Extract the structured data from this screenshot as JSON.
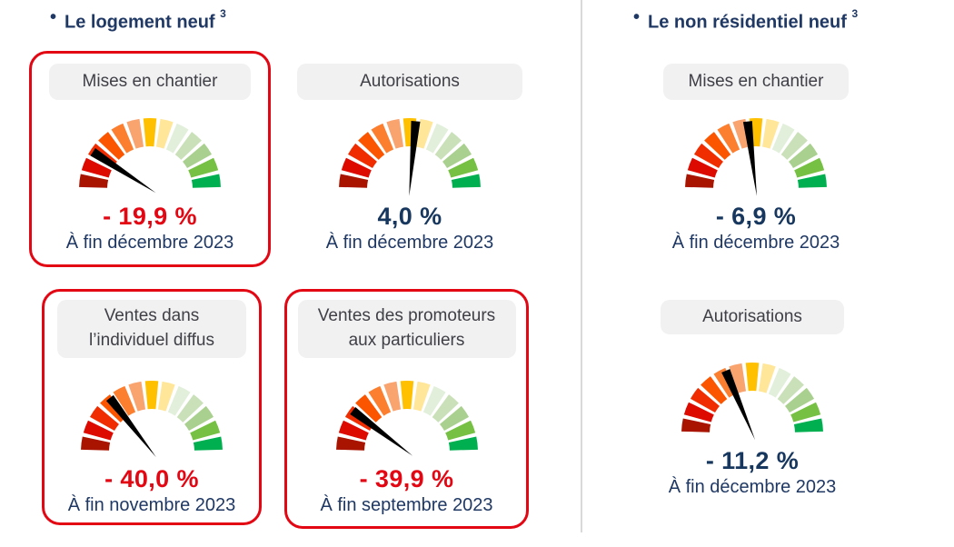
{
  "colors": {
    "accent_red": "#E30613",
    "navy": "#1F3864",
    "value_navy": "#17375E",
    "chip_bg": "#F1F1F2",
    "chip_text": "#3F3F46",
    "divider": "#D9D9D9",
    "needle": "#000000"
  },
  "header": {
    "bullet": "•",
    "left_title": "Le logement neuf",
    "left_footnote": "3",
    "right_title": "Le non résidentiel neuf",
    "right_footnote": "3"
  },
  "gauge_style": {
    "start_angle_deg": 180,
    "end_angle_deg": 0,
    "outer_radius": 78,
    "inner_radius": 47,
    "gap_half_deg": 1.6,
    "segment_colors": [
      "#A81400",
      "#DD0A00",
      "#F02D00",
      "#FB5500",
      "#FC7E2F",
      "#F9A36F",
      "#FFC000",
      "#FFE699",
      "#E2EFDA",
      "#C9E0B8",
      "#A9D08E",
      "#76C043",
      "#00B050"
    ]
  },
  "chart_data": [
    {
      "type": "gauge",
      "section": "Le logement neuf",
      "label": "Mises en chantier",
      "value": -19.9,
      "value_display": "- 19,9 %",
      "period": "À fin décembre 2023",
      "value_color": "#E30613",
      "highlighted": true,
      "needle_angle_deg": 147
    },
    {
      "type": "gauge",
      "section": "Le logement neuf",
      "label": "Autorisations",
      "value": 4.0,
      "value_display": "4,0 %",
      "period": "À fin décembre 2023",
      "value_color": "#17375E",
      "highlighted": false,
      "needle_angle_deg": 85
    },
    {
      "type": "gauge",
      "section": "Le logement neuf",
      "label": "Ventes dans\nl’individuel diffus",
      "value": -40.0,
      "value_display": "- 40,0 %",
      "period": "À fin novembre 2023",
      "value_color": "#E30613",
      "highlighted": true,
      "needle_angle_deg": 128
    },
    {
      "type": "gauge",
      "section": "Le logement neuf",
      "label": "Ventes des promoteurs\naux particuliers",
      "value": -39.9,
      "value_display": "- 39,9 %",
      "period": "À fin septembre 2023",
      "value_color": "#E30613",
      "highlighted": true,
      "needle_angle_deg": 143
    },
    {
      "type": "gauge",
      "section": "Le non résidentiel neuf",
      "label": "Mises en chantier",
      "value": -6.9,
      "value_display": "- 6,9 %",
      "period": "À fin décembre 2023",
      "value_color": "#17375E",
      "highlighted": false,
      "needle_angle_deg": 97
    },
    {
      "type": "gauge",
      "section": "Le non résidentiel neuf",
      "label": "Autorisations",
      "value": -11.2,
      "value_display": "- 11,2 %",
      "period": "À fin décembre 2023",
      "value_color": "#17375E",
      "highlighted": false,
      "needle_angle_deg": 113
    }
  ]
}
